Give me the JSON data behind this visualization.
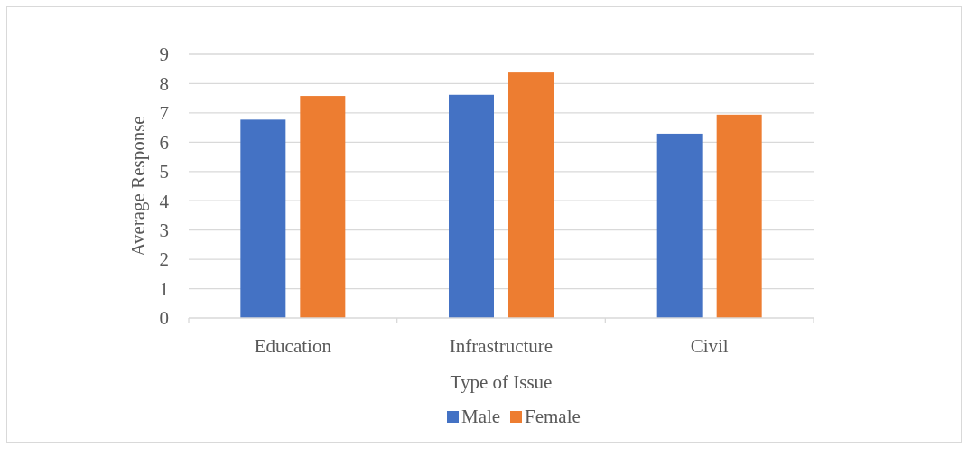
{
  "chart_data": {
    "type": "bar",
    "xlabel": "Type of Issue",
    "ylabel": "Average Response",
    "categories": [
      "Education",
      "Infrastructure",
      "Civil"
    ],
    "series": [
      {
        "name": "Male",
        "color": "#4472c4",
        "values": [
          6.77,
          7.62,
          6.29
        ]
      },
      {
        "name": "Female",
        "color": "#ed7d31",
        "values": [
          7.58,
          8.38,
          6.94
        ]
      }
    ],
    "ylim": [
      0,
      9
    ],
    "yticks": [
      0,
      1,
      2,
      3,
      4,
      5,
      6,
      7,
      8,
      9
    ],
    "grid": "y",
    "legend": "bottom"
  }
}
